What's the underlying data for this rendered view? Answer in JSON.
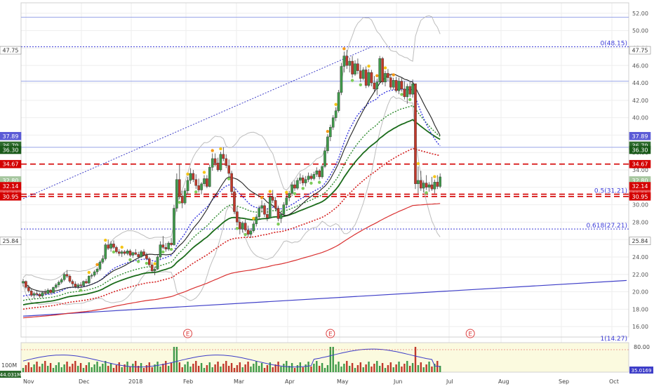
{
  "colors": {
    "up": "#3f9a4a",
    "down": "#c0392b",
    "sma_black": "#222222",
    "sma_darkgreen": "#1a6b1a",
    "sma_red": "#d93030",
    "ema_blue_dotted": "#3535e0",
    "ema_green_dotted": "#2e8b2e",
    "ema_red_dotted": "#d42020",
    "bollinger": "#bdbdbd",
    "fib": "#3b3bd8",
    "hline_blue": "#9aa6e8",
    "hline_red_dash": "#d40000",
    "trendline": "#3f3fc8",
    "volume_bg": "#fbfadf",
    "rsi_line": "#3d3dc8",
    "dot_yellow": "#f5c518",
    "dot_orange": "#f59a18",
    "dot_green": "#7dcc5a"
  },
  "chart_data": [
    {
      "type": "candlestick",
      "y_axis_ticks": [
        "52.00",
        "50.00",
        "48.00",
        "46.00",
        "44.00",
        "42.00",
        "40.00",
        "38.00",
        "36.00",
        "34.00",
        "32.00",
        "30.00",
        "28.00",
        "26.00",
        "24.00",
        "22.00",
        "20.00",
        "18.00",
        "16.00"
      ],
      "ylim": [
        14.8,
        53.2
      ],
      "x_axis_labels": [
        "Nov",
        "Dec",
        "2018",
        "Feb",
        "Mar",
        "Apr",
        "May",
        "Jun",
        "Jul",
        "Aug",
        "Sep",
        "Oct"
      ],
      "price_badges": [
        {
          "text": "47.75",
          "value": 47.75,
          "bg": "#ffffff",
          "fg": "#333333",
          "border": "#888888"
        },
        {
          "text": "37.89",
          "value": 37.89,
          "bg": "#5b5bd6",
          "fg": "#ffffff",
          "border": "#5b5bd6"
        },
        {
          "text": "36.79",
          "value": 36.79,
          "bg": "#2e6b2e",
          "fg": "#ffffff",
          "border": "#2e6b2e"
        },
        {
          "text": "36.30",
          "value": 36.3,
          "bg": "#1a5a1a",
          "fg": "#ffffff",
          "border": "#1a5a1a"
        },
        {
          "text": "34.67",
          "value": 34.67,
          "bg": "#d40000",
          "fg": "#ffffff",
          "border": "#d40000"
        },
        {
          "text": "32.80",
          "value": 32.8,
          "bg": "#a7c7a0",
          "fg": "#ffffff",
          "border": "#a7c7a0"
        },
        {
          "text": "32.14",
          "value": 32.14,
          "bg": "#d40000",
          "fg": "#ffffff",
          "border": "#d40000"
        },
        {
          "text": "31.21",
          "value": 31.21,
          "bg": "#e85050",
          "fg": "#ffffff",
          "border": "#e85050"
        },
        {
          "text": "30.95",
          "value": 30.95,
          "bg": "#d40000",
          "fg": "#ffffff",
          "border": "#d40000"
        },
        {
          "text": "25.84",
          "value": 25.84,
          "bg": "#ffffff",
          "fg": "#333333",
          "border": "#888888"
        }
      ],
      "fib_labels": [
        {
          "text": "0(48.15)",
          "value": 48.15
        },
        {
          "text": "0.5(31.21)",
          "value": 31.21
        },
        {
          "text": "0.618(27.21)",
          "value": 27.21
        },
        {
          "text": "1(14.27)",
          "value": 14.27
        }
      ],
      "horizontal_lines": [
        {
          "value": 51.55,
          "style": "blue_solid"
        },
        {
          "value": 48.15,
          "style": "blue_dotted"
        },
        {
          "value": 44.2,
          "style": "blue_solid"
        },
        {
          "value": 36.6,
          "style": "blue_solid"
        },
        {
          "value": 34.67,
          "style": "red_dashed"
        },
        {
          "value": 31.21,
          "style": "red_dashed"
        },
        {
          "value": 30.95,
          "style": "red_dashed"
        },
        {
          "value": 27.21,
          "style": "blue_dotted"
        }
      ],
      "earnings_markers": [
        {
          "label": "E",
          "x_index": 60
        },
        {
          "label": "E",
          "x_index": 112
        },
        {
          "label": "E",
          "x_index": 163
        }
      ],
      "trendline_up_start": {
        "index": 0,
        "value": 30.7
      },
      "trendline_up_end": {
        "index": 127,
        "value": 48.15
      },
      "trendline_long_start": {
        "index": 0,
        "value": 17.2
      },
      "trendline_long_end": {
        "index": 220,
        "value": 21.3
      },
      "candles_ohlc": [
        [
          21.0,
          21.5,
          20.6,
          21.2
        ],
        [
          21.2,
          21.3,
          20.3,
          20.5
        ],
        [
          20.5,
          20.8,
          19.9,
          20.1
        ],
        [
          20.1,
          20.4,
          19.4,
          19.6
        ],
        [
          19.6,
          20.0,
          19.2,
          19.8
        ],
        [
          19.8,
          20.2,
          19.5,
          19.7
        ],
        [
          19.7,
          19.9,
          19.3,
          19.5
        ],
        [
          19.5,
          20.0,
          19.3,
          19.9
        ],
        [
          19.9,
          20.3,
          19.6,
          19.8
        ],
        [
          19.8,
          20.4,
          19.7,
          20.2
        ],
        [
          20.2,
          20.3,
          19.7,
          19.9
        ],
        [
          19.9,
          20.6,
          19.8,
          20.5
        ],
        [
          20.5,
          21.0,
          20.3,
          20.8
        ],
        [
          20.8,
          21.3,
          20.5,
          21.1
        ],
        [
          21.1,
          21.6,
          20.9,
          21.4
        ],
        [
          21.4,
          22.2,
          21.2,
          22.0
        ],
        [
          22.0,
          22.5,
          21.6,
          21.8
        ],
        [
          21.8,
          22.0,
          21.0,
          21.2
        ],
        [
          21.2,
          21.4,
          20.6,
          20.9
        ],
        [
          20.9,
          21.2,
          20.4,
          20.6
        ],
        [
          20.6,
          21.0,
          20.3,
          20.8
        ],
        [
          20.8,
          21.1,
          20.5,
          20.7
        ],
        [
          20.7,
          21.3,
          20.6,
          21.2
        ],
        [
          21.2,
          21.5,
          20.9,
          21.0
        ],
        [
          21.0,
          21.9,
          20.9,
          21.8
        ],
        [
          21.8,
          22.1,
          21.5,
          21.9
        ],
        [
          21.9,
          22.5,
          21.7,
          22.3
        ],
        [
          22.3,
          22.8,
          22.0,
          22.6
        ],
        [
          22.6,
          23.6,
          22.4,
          23.4
        ],
        [
          23.4,
          24.2,
          23.2,
          23.8
        ],
        [
          23.8,
          25.6,
          23.6,
          25.4
        ],
        [
          25.4,
          26.0,
          24.8,
          25.0
        ],
        [
          25.0,
          25.8,
          24.6,
          25.5
        ],
        [
          25.5,
          25.9,
          24.9,
          25.1
        ],
        [
          25.1,
          25.3,
          24.4,
          24.6
        ],
        [
          24.6,
          24.9,
          24.1,
          24.4
        ],
        [
          24.4,
          24.8,
          24.0,
          24.6
        ],
        [
          24.6,
          24.8,
          24.2,
          24.4
        ],
        [
          24.4,
          24.9,
          24.2,
          24.7
        ],
        [
          24.7,
          24.9,
          24.0,
          24.2
        ],
        [
          24.2,
          24.6,
          23.9,
          24.5
        ],
        [
          24.5,
          24.9,
          24.2,
          24.3
        ],
        [
          24.3,
          24.6,
          23.8,
          24.0
        ],
        [
          24.0,
          24.8,
          23.9,
          24.6
        ],
        [
          24.6,
          24.9,
          24.1,
          24.2
        ],
        [
          24.2,
          24.5,
          23.6,
          23.8
        ],
        [
          23.8,
          24.0,
          22.9,
          23.1
        ],
        [
          23.1,
          23.4,
          22.2,
          22.4
        ],
        [
          22.4,
          22.9,
          21.9,
          22.6
        ],
        [
          22.6,
          24.2,
          22.5,
          24.0
        ],
        [
          24.0,
          25.8,
          23.8,
          25.4
        ],
        [
          25.4,
          26.4,
          24.9,
          25.1
        ],
        [
          25.1,
          25.6,
          24.6,
          24.9
        ],
        [
          24.9,
          25.8,
          24.7,
          25.6
        ],
        [
          25.6,
          26.2,
          25.2,
          25.4
        ],
        [
          25.4,
          30.0,
          25.3,
          29.6
        ],
        [
          29.6,
          33.6,
          29.2,
          32.9
        ],
        [
          32.9,
          34.6,
          30.6,
          31.0
        ],
        [
          31.0,
          31.6,
          29.6,
          30.2
        ],
        [
          30.2,
          31.9,
          30.0,
          31.6
        ],
        [
          31.6,
          33.2,
          31.2,
          32.8
        ],
        [
          32.8,
          34.2,
          32.4,
          33.6
        ],
        [
          33.6,
          34.0,
          32.6,
          32.9
        ],
        [
          32.9,
          33.5,
          31.8,
          32.2
        ],
        [
          32.2,
          33.0,
          31.4,
          31.7
        ],
        [
          31.7,
          32.6,
          31.2,
          32.4
        ],
        [
          32.4,
          33.4,
          32.1,
          33.0
        ],
        [
          33.0,
          33.4,
          31.9,
          32.1
        ],
        [
          32.1,
          34.6,
          32.0,
          34.3
        ],
        [
          34.3,
          35.9,
          33.9,
          35.3
        ],
        [
          35.3,
          35.9,
          34.4,
          34.8
        ],
        [
          34.8,
          35.4,
          33.8,
          34.0
        ],
        [
          34.0,
          36.1,
          33.8,
          35.8
        ],
        [
          35.8,
          36.6,
          35.0,
          35.3
        ],
        [
          35.3,
          35.8,
          34.2,
          34.5
        ],
        [
          34.5,
          35.2,
          33.3,
          33.6
        ],
        [
          33.6,
          33.9,
          31.2,
          31.5
        ],
        [
          31.5,
          32.0,
          28.9,
          29.2
        ],
        [
          29.2,
          29.8,
          27.6,
          28.0
        ],
        [
          28.0,
          28.6,
          26.6,
          27.2
        ],
        [
          27.2,
          28.1,
          26.8,
          27.9
        ],
        [
          27.9,
          28.3,
          26.9,
          27.1
        ],
        [
          27.1,
          27.6,
          26.3,
          26.6
        ],
        [
          26.6,
          27.3,
          26.2,
          27.0
        ],
        [
          27.0,
          28.1,
          26.8,
          27.8
        ],
        [
          27.8,
          28.9,
          27.5,
          28.6
        ],
        [
          28.6,
          29.9,
          28.3,
          29.6
        ],
        [
          29.6,
          30.5,
          29.1,
          29.9
        ],
        [
          29.9,
          30.2,
          28.6,
          28.9
        ],
        [
          28.9,
          29.6,
          28.1,
          28.5
        ],
        [
          28.5,
          31.2,
          28.4,
          30.9
        ],
        [
          30.9,
          31.7,
          30.2,
          30.5
        ],
        [
          30.5,
          30.9,
          29.3,
          29.6
        ],
        [
          29.6,
          29.9,
          28.1,
          28.4
        ],
        [
          28.4,
          29.2,
          27.9,
          28.9
        ],
        [
          28.9,
          30.3,
          28.7,
          30.0
        ],
        [
          30.0,
          31.1,
          29.7,
          30.8
        ],
        [
          30.8,
          31.6,
          30.4,
          31.3
        ],
        [
          31.3,
          32.6,
          31.0,
          32.3
        ],
        [
          32.3,
          32.8,
          31.6,
          31.9
        ],
        [
          31.9,
          33.1,
          31.7,
          32.8
        ],
        [
          32.8,
          33.6,
          32.4,
          33.1
        ],
        [
          33.1,
          33.4,
          32.2,
          32.5
        ],
        [
          32.5,
          33.3,
          32.1,
          32.9
        ],
        [
          32.9,
          33.7,
          32.6,
          33.3
        ],
        [
          33.3,
          33.6,
          32.8,
          33.0
        ],
        [
          33.0,
          33.8,
          32.8,
          33.5
        ],
        [
          33.5,
          34.3,
          33.2,
          33.9
        ],
        [
          33.9,
          34.1,
          32.9,
          33.2
        ],
        [
          33.2,
          34.6,
          33.0,
          34.4
        ],
        [
          34.4,
          36.6,
          34.2,
          36.2
        ],
        [
          36.2,
          38.1,
          35.9,
          37.8
        ],
        [
          37.8,
          39.2,
          37.3,
          38.9
        ],
        [
          38.9,
          40.3,
          38.6,
          40.0
        ],
        [
          40.0,
          41.2,
          39.6,
          40.8
        ],
        [
          40.8,
          43.2,
          40.6,
          42.9
        ],
        [
          42.9,
          46.3,
          42.6,
          45.9
        ],
        [
          45.9,
          47.6,
          45.2,
          47.1
        ],
        [
          47.1,
          47.8,
          45.6,
          46.0
        ],
        [
          46.0,
          46.9,
          45.2,
          46.5
        ],
        [
          46.5,
          47.1,
          44.6,
          45.0
        ],
        [
          45.0,
          46.6,
          44.8,
          46.2
        ],
        [
          46.2,
          46.8,
          45.0,
          45.4
        ],
        [
          45.4,
          46.1,
          44.1,
          44.5
        ],
        [
          44.5,
          45.8,
          44.3,
          45.5
        ],
        [
          45.5,
          45.9,
          43.4,
          43.7
        ],
        [
          43.7,
          45.6,
          43.5,
          45.2
        ],
        [
          45.2,
          45.5,
          43.6,
          44.0
        ],
        [
          44.0,
          44.8,
          43.0,
          43.3
        ],
        [
          43.3,
          44.5,
          42.6,
          44.1
        ],
        [
          44.1,
          47.1,
          43.9,
          46.8
        ],
        [
          46.8,
          47.0,
          43.8,
          44.1
        ],
        [
          44.1,
          45.4,
          43.6,
          45.1
        ],
        [
          45.1,
          45.6,
          44.2,
          44.6
        ],
        [
          44.6,
          45.0,
          43.2,
          43.5
        ],
        [
          43.5,
          44.6,
          43.2,
          44.3
        ],
        [
          44.3,
          44.7,
          42.9,
          43.1
        ],
        [
          43.1,
          44.6,
          42.7,
          44.2
        ],
        [
          44.2,
          44.6,
          43.0,
          43.3
        ],
        [
          43.3,
          44.2,
          42.1,
          42.4
        ],
        [
          42.4,
          43.9,
          41.6,
          43.6
        ],
        [
          43.6,
          44.1,
          42.4,
          42.7
        ],
        [
          42.7,
          44.4,
          42.3,
          43.9
        ],
        [
          43.9,
          38.2,
          31.8,
          32.4
        ],
        [
          32.4,
          34.4,
          31.3,
          32.8
        ],
        [
          32.8,
          33.9,
          31.6,
          31.9
        ],
        [
          31.9,
          32.8,
          31.4,
          32.5
        ],
        [
          32.5,
          33.4,
          31.7,
          32.0
        ],
        [
          32.0,
          32.6,
          31.5,
          32.3
        ],
        [
          32.3,
          33.2,
          31.6,
          31.8
        ],
        [
          31.8,
          32.9,
          31.3,
          32.6
        ],
        [
          32.6,
          33.4,
          31.8,
          32.1
        ],
        [
          32.1,
          33.6,
          31.9,
          33.2
        ]
      ],
      "volume_axis_labels": [
        "100M",
        "80.00"
      ],
      "volume_badges": [
        {
          "text": "44.031M",
          "bg": "#2e6b2e",
          "fg": "#ffffff"
        },
        {
          "text": "35.0169",
          "bg": "#3d3dc8",
          "fg": "#ffffff"
        }
      ]
    }
  ]
}
